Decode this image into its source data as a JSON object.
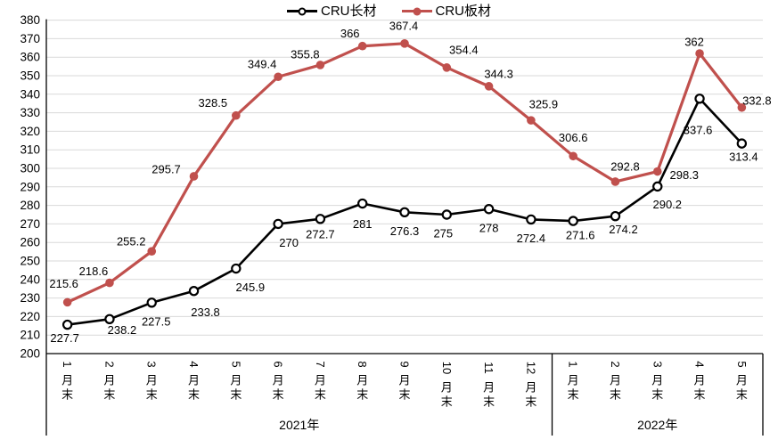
{
  "legend": {
    "items": [
      {
        "id": "cru-long",
        "label": "CRU长材"
      },
      {
        "id": "cru-flat",
        "label": "CRU板材"
      }
    ]
  },
  "colors": {
    "long_series": "#000000",
    "flat_series": "#C0504D",
    "gridline": "#D9D9D9",
    "axis": "#000000",
    "label_text": "#000000",
    "background": "#FFFFFF"
  },
  "chart_data": {
    "type": "line",
    "title": "",
    "xlabel": "",
    "ylabel": "",
    "ylim": [
      200,
      380
    ],
    "ytick_step": 10,
    "grid": true,
    "legend_position": "top",
    "categories": [
      "1月末",
      "2月末",
      "3月末",
      "4月末",
      "5月末",
      "6月末",
      "7月末",
      "8月末",
      "9月末",
      "10月末",
      "11月末",
      "12月末",
      "1月末",
      "2月末",
      "3月末",
      "4月末",
      "5月末"
    ],
    "category_groups": [
      {
        "label": "2021年",
        "span": 12
      },
      {
        "label": "2022年",
        "span": 5
      }
    ],
    "series": [
      {
        "id": "cru-flat",
        "name": "CRU板材",
        "color": "#C0504D",
        "marker": "filled-circle",
        "values": [
          227.7,
          238.2,
          255.2,
          295.7,
          328.5,
          349.4,
          355.8,
          366,
          367.4,
          354.4,
          344.3,
          325.9,
          306.6,
          292.8,
          298.3,
          362,
          332.8
        ],
        "labels": [
          "227.7",
          "238.2",
          "255.2",
          "295.7",
          "328.5",
          "349.4",
          "355.8",
          "366",
          "367.4",
          "354.4",
          "344.3",
          "325.9",
          "306.6",
          "292.8",
          "298.3",
          "362",
          "332.8"
        ],
        "label_offsets": [
          [
            -3,
            40
          ],
          [
            14,
            53
          ],
          [
            -23,
            -11
          ],
          [
            -31,
            -8
          ],
          [
            -26,
            -14
          ],
          [
            -18,
            -14
          ],
          [
            -17,
            -12
          ],
          [
            -14,
            -14
          ],
          [
            -1,
            -20
          ],
          [
            19,
            -20
          ],
          [
            11,
            -14
          ],
          [
            14,
            -18
          ],
          [
            0,
            -21
          ],
          [
            11,
            -17
          ],
          [
            30,
            4
          ],
          [
            -6,
            -13
          ],
          [
            17,
            -8
          ]
        ]
      },
      {
        "id": "cru-long",
        "name": "CRU长材",
        "color": "#000000",
        "marker": "open-circle",
        "values": [
          215.6,
          218.6,
          227.5,
          233.8,
          245.9,
          270,
          272.7,
          281,
          276.3,
          275,
          278,
          272.4,
          271.6,
          274.2,
          290.2,
          337.6,
          313.4
        ],
        "labels": [
          "215.6",
          "218.6",
          "227.5",
          "233.8",
          "245.9",
          "270",
          "272.7",
          "281",
          "276.3",
          "275",
          "278",
          "272.4",
          "271.6",
          "274.2",
          "290.2",
          "337.6",
          "313.4"
        ],
        "label_offsets": [
          [
            -4,
            -46
          ],
          [
            -18,
            -54
          ],
          [
            5,
            21
          ],
          [
            13,
            24
          ],
          [
            16,
            21
          ],
          [
            12,
            21
          ],
          [
            0,
            17
          ],
          [
            0,
            23
          ],
          [
            0,
            21
          ],
          [
            -4,
            21
          ],
          [
            0,
            21
          ],
          [
            0,
            21
          ],
          [
            8,
            16
          ],
          [
            9,
            15
          ],
          [
            11,
            20
          ],
          [
            -2,
            35
          ],
          [
            2,
            15
          ]
        ]
      }
    ]
  }
}
